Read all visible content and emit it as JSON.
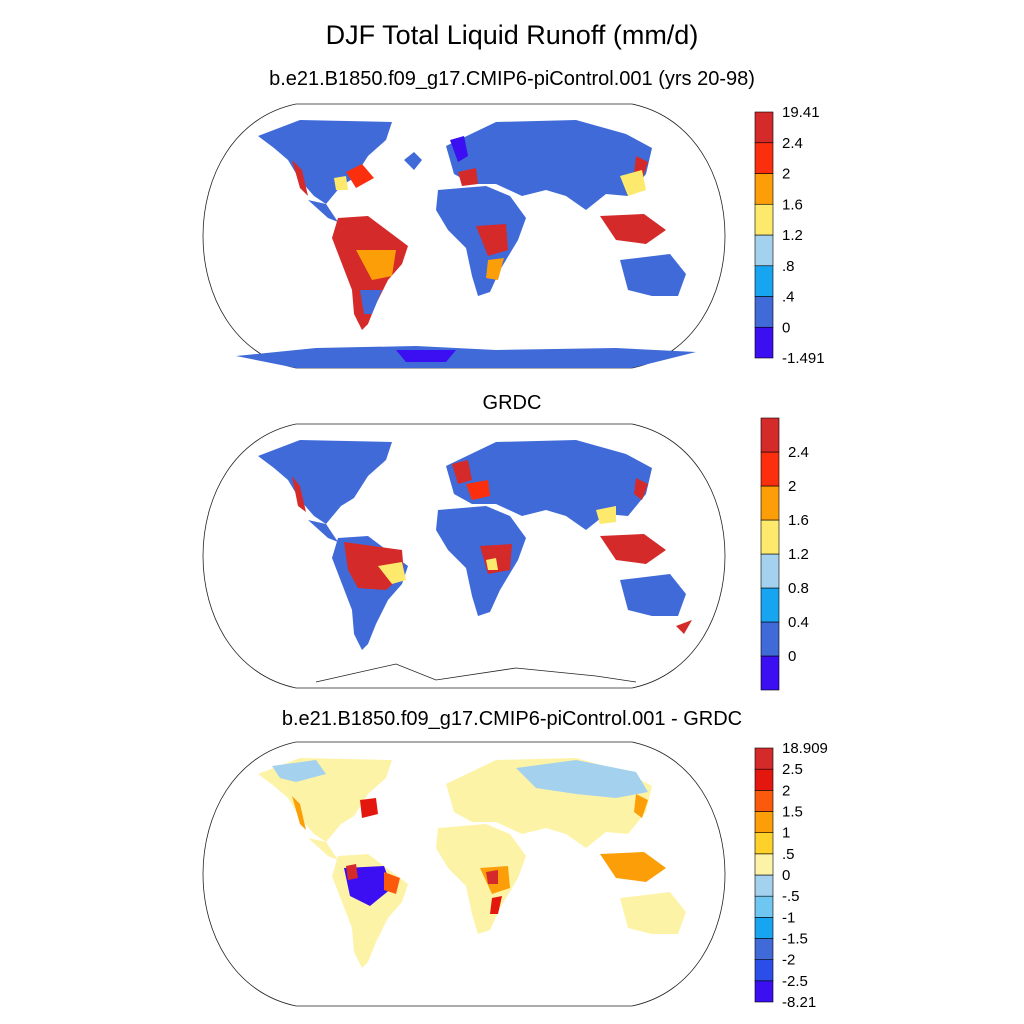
{
  "title": "DJF Total Liquid Runoff (mm/d)",
  "panels": [
    {
      "id": "model",
      "subtitle": "b.e21.B1850.f09_g17.CMIP6-piControl.001 (yrs 20-98)",
      "colorbar": {
        "colors": [
          "#3b0ff2",
          "#3f6ad8",
          "#17a5f2",
          "#a3d1ee",
          "#fde96c",
          "#fb9e08",
          "#fb2f0d",
          "#d42a2a"
        ],
        "labels": [
          "-1.491",
          "0",
          ".4",
          ".8",
          "1.2",
          "1.6",
          "2",
          "2.4",
          "19.41"
        ]
      }
    },
    {
      "id": "obs",
      "subtitle": "GRDC",
      "colorbar": {
        "colors": [
          "#3b0ff2",
          "#3f6ad8",
          "#17a5f2",
          "#a3d1ee",
          "#fde96c",
          "#fb9e08",
          "#fb2f0d",
          "#d42a2a"
        ],
        "labels": [
          "",
          "0",
          "0.4",
          "0.8",
          "1.2",
          "1.6",
          "2",
          "2.4",
          ""
        ]
      }
    },
    {
      "id": "diff",
      "subtitle": "b.e21.B1850.f09_g17.CMIP6-piControl.001 - GRDC",
      "colorbar": {
        "colors": [
          "#3b0ff2",
          "#2b4ee8",
          "#3f6ad8",
          "#17a5f2",
          "#6fc6f0",
          "#a3d1ee",
          "#fdf3a6",
          "#fdd12a",
          "#fb9e08",
          "#fb5a0d",
          "#e4170f",
          "#d42a2a"
        ],
        "labels": [
          "-8.21",
          "-2.5",
          "-2",
          "-1.5",
          "-1",
          "-.5",
          "0",
          ".5",
          "1",
          "1.5",
          "2",
          "2.5",
          "18.909"
        ]
      }
    }
  ]
}
